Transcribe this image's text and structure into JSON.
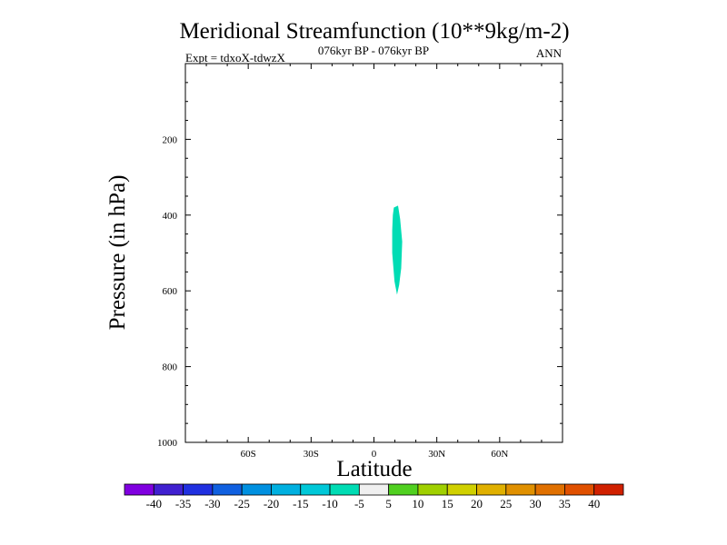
{
  "chart_data": {
    "type": "heatmap",
    "title": "Meridional Streamfunction (10**9kg/m-2)",
    "subtitle": "076kyr BP - 076kyr BP",
    "left_label": "Expt = tdxoX-tdwzX",
    "right_label": "ANN",
    "xlabel": "Latitude",
    "ylabel": "Pressure (in hPa)",
    "xlim": [
      -90,
      90
    ],
    "ylim": [
      0,
      1000
    ],
    "y_reversed": true,
    "x_ticks": [
      {
        "value": -60,
        "label": "60S"
      },
      {
        "value": -30,
        "label": "30S"
      },
      {
        "value": 0,
        "label": "0"
      },
      {
        "value": 30,
        "label": "30N"
      },
      {
        "value": 60,
        "label": "60N"
      }
    ],
    "y_ticks": [
      {
        "value": 200,
        "label": "200"
      },
      {
        "value": 400,
        "label": "400"
      },
      {
        "value": 600,
        "label": "600"
      },
      {
        "value": 800,
        "label": "800"
      },
      {
        "value": 1000,
        "label": "1000"
      }
    ],
    "contour_regions": [
      {
        "level_range": [
          -10,
          -5
        ],
        "color": "#00dcb4",
        "polygon": [
          [
            9.5,
            380
          ],
          [
            11.5,
            375
          ],
          [
            12.5,
            410
          ],
          [
            13.5,
            470
          ],
          [
            13,
            540
          ],
          [
            12,
            585
          ],
          [
            11,
            610
          ],
          [
            9.8,
            575
          ],
          [
            8.7,
            500
          ],
          [
            8.7,
            440
          ],
          [
            9.0,
            400
          ]
        ]
      }
    ],
    "colorbar": {
      "colors": [
        "#8000e0",
        "#4020d0",
        "#2030e0",
        "#1060e0",
        "#0090e0",
        "#00b0e0",
        "#00c8d8",
        "#00dcb4",
        "#f0f0f0",
        "#50d020",
        "#a0d000",
        "#d0d000",
        "#e0b000",
        "#e09000",
        "#e07000",
        "#e05000",
        "#d02000"
      ],
      "labels": [
        "-40",
        "-35",
        "-30",
        "-25",
        "-20",
        "-15",
        "-10",
        "-5",
        "5",
        "10",
        "15",
        "20",
        "25",
        "30",
        "35",
        "40"
      ]
    }
  }
}
